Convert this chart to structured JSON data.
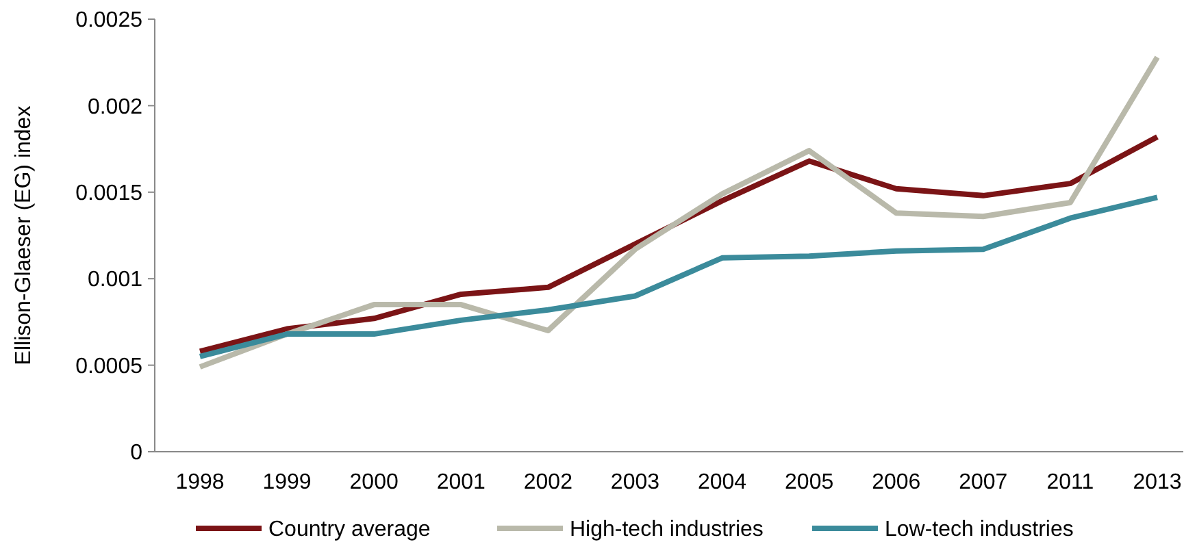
{
  "chart_data": {
    "type": "line",
    "ylabel": "Ellison-Glaeser (EG) index",
    "categories": [
      "1998",
      "1999",
      "2000",
      "2001",
      "2002",
      "2003",
      "2004",
      "2005",
      "2006",
      "2007",
      "2011",
      "2013"
    ],
    "series": [
      {
        "name": "Country average",
        "color": "#7b1416",
        "values": [
          0.00058,
          0.00071,
          0.00077,
          0.00091,
          0.00095,
          0.0012,
          0.00145,
          0.00168,
          0.00152,
          0.00148,
          0.00155,
          0.00182
        ]
      },
      {
        "name": "High-tech industries",
        "color": "#b9b9aa",
        "values": [
          0.00049,
          0.00068,
          0.00085,
          0.00085,
          0.0007,
          0.00117,
          0.00149,
          0.00174,
          0.00138,
          0.00136,
          0.00144,
          0.00228
        ]
      },
      {
        "name": "Low-tech industries",
        "color": "#3b8b9b",
        "values": [
          0.00055,
          0.00068,
          0.00068,
          0.00076,
          0.00082,
          0.0009,
          0.00112,
          0.00113,
          0.00116,
          0.00117,
          0.00135,
          0.00147
        ]
      }
    ],
    "ylim": [
      0,
      0.0025
    ],
    "yticks": [
      0,
      0.0005,
      0.001,
      0.0015,
      0.002,
      0.0025
    ],
    "grid": false,
    "legend": "bottom",
    "line_style": "solid"
  }
}
